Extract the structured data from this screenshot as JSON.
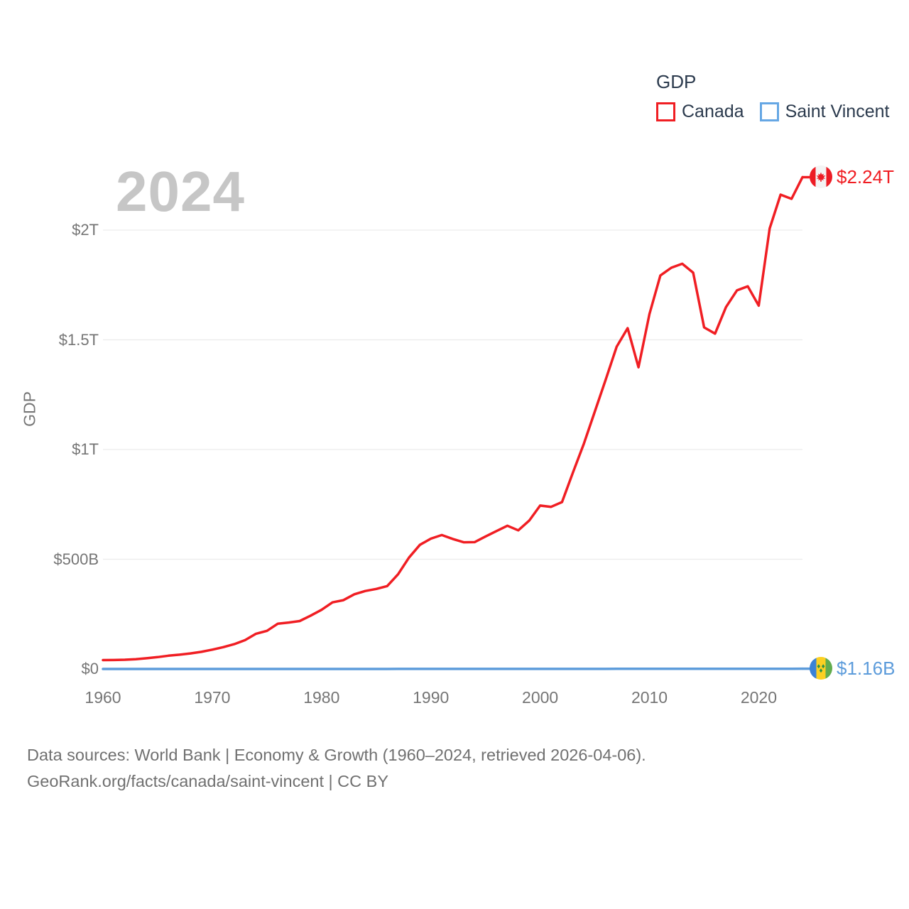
{
  "watermark": "2024",
  "legend": {
    "title": "GDP",
    "items": [
      {
        "label": "Canada",
        "color": "#f01e23"
      },
      {
        "label": "Saint Vincent",
        "color": "#66a7e4"
      }
    ]
  },
  "y_axis": {
    "title": "GDP"
  },
  "end_labels": {
    "canada": "$2.24T",
    "saint_vincent": "$1.16B"
  },
  "footer": {
    "line1": "Data sources: World Bank | Economy & Growth (1960–2024, retrieved 2026-04-06).",
    "line2": "GeoRank.org/facts/canada/saint-vincent | CC BY"
  },
  "icons": {
    "canada_flag": "canada-flag-icon",
    "saint_vincent_flag": "saint-vincent-flag-icon"
  },
  "chart_data": {
    "type": "line",
    "title": "GDP",
    "xlabel": "",
    "ylabel": "GDP",
    "units": "billions USD",
    "x_range": [
      1960,
      2024
    ],
    "ylim": [
      0,
      2320
    ],
    "grid": true,
    "legend_position": "top-right",
    "gridline_values": [
      0,
      500,
      1000,
      1500,
      2000
    ],
    "y_ticks": [
      {
        "label": "$0",
        "value": 0
      },
      {
        "label": "$500B",
        "value": 500
      },
      {
        "label": "$1T",
        "value": 1000
      },
      {
        "label": "$1.5T",
        "value": 1500
      },
      {
        "label": "$2T",
        "value": 2000
      }
    ],
    "x_ticks": [
      {
        "label": "1960",
        "year": 1960
      },
      {
        "label": "1970",
        "year": 1970
      },
      {
        "label": "1980",
        "year": 1980
      },
      {
        "label": "1990",
        "year": 1990
      },
      {
        "label": "2000",
        "year": 2000
      },
      {
        "label": "2010",
        "year": 2010
      },
      {
        "label": "2020",
        "year": 2020
      }
    ],
    "x": [
      1960,
      1961,
      1962,
      1963,
      1964,
      1965,
      1966,
      1967,
      1968,
      1969,
      1970,
      1971,
      1972,
      1973,
      1974,
      1975,
      1976,
      1977,
      1978,
      1979,
      1980,
      1981,
      1982,
      1983,
      1984,
      1985,
      1986,
      1987,
      1988,
      1989,
      1990,
      1991,
      1992,
      1993,
      1994,
      1995,
      1996,
      1997,
      1998,
      1999,
      2000,
      2001,
      2002,
      2003,
      2004,
      2005,
      2006,
      2007,
      2008,
      2009,
      2010,
      2011,
      2012,
      2013,
      2014,
      2015,
      2016,
      2017,
      2018,
      2019,
      2020,
      2021,
      2022,
      2023,
      2024
    ],
    "series": [
      {
        "name": "Canada",
        "slug": "canada",
        "color": "#f01e23",
        "end_label": "$2.24T",
        "values": [
          40.5,
          40.9,
          42.2,
          44.7,
          48.9,
          53.9,
          60.4,
          64.9,
          70.8,
          77.9,
          87.9,
          99.3,
          113.1,
          131.3,
          160.4,
          173.8,
          206.6,
          211.6,
          218.6,
          243.1,
          269.6,
          303.5,
          313.5,
          340.6,
          355.4,
          364.8,
          377.7,
          431.3,
          507.4,
          565.8,
          593.9,
          610.3,
          592.4,
          577.2,
          578.1,
          604.0,
          628.5,
          652.8,
          631.8,
          676.1,
          744.8,
          738.9,
          760.6,
          895.5,
          1026.7,
          1173.1,
          1319.3,
          1468.8,
          1553.0,
          1374.6,
          1617.3,
          1793.3,
          1828.4,
          1846.6,
          1805.8,
          1556.5,
          1528.0,
          1649.3,
          1725.3,
          1743.7,
          1655.7,
          2007.5,
          2161.5,
          2142.5,
          2241.0
        ]
      },
      {
        "name": "Saint Vincent",
        "slug": "saint-vincent",
        "color": "#5d9cdb",
        "end_label": "$1.16B",
        "values": [
          0.013,
          0.014,
          0.015,
          0.016,
          0.017,
          0.019,
          0.02,
          0.021,
          0.023,
          0.026,
          0.029,
          0.033,
          0.035,
          0.038,
          0.043,
          0.048,
          0.051,
          0.057,
          0.068,
          0.075,
          0.087,
          0.098,
          0.107,
          0.113,
          0.124,
          0.135,
          0.151,
          0.166,
          0.186,
          0.197,
          0.209,
          0.22,
          0.236,
          0.242,
          0.244,
          0.257,
          0.266,
          0.279,
          0.298,
          0.312,
          0.327,
          0.345,
          0.355,
          0.376,
          0.406,
          0.44,
          0.479,
          0.527,
          0.551,
          0.551,
          0.563,
          0.576,
          0.578,
          0.601,
          0.611,
          0.63,
          0.654,
          0.669,
          0.694,
          0.719,
          0.717,
          0.779,
          0.872,
          1.065,
          1.16
        ]
      }
    ]
  }
}
